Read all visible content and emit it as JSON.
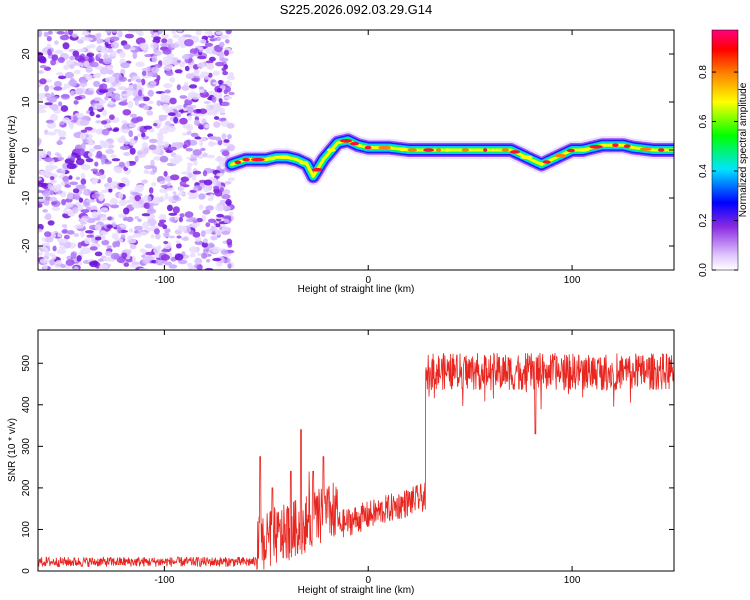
{
  "title": "S225.2026.092.03.29.G14",
  "chart_data": [
    {
      "type": "heatmap",
      "xlabel": "Height of straight line (km)",
      "ylabel": "Frequency (Hz)",
      "xlim": [
        -162,
        150
      ],
      "ylim": [
        -25,
        25
      ],
      "x_ticks": [
        -100,
        0,
        100
      ],
      "y_ticks": [
        -20,
        -10,
        0,
        10,
        20
      ],
      "colorbar": {
        "label": "Normalized spectral amplitude",
        "range": [
          0,
          0.97
        ],
        "ticks": [
          0.0,
          0.2,
          0.4,
          0.6,
          0.8
        ],
        "colors": [
          "#ffffff",
          "#8a2be2",
          "#0000ff",
          "#00e5ff",
          "#00ff00",
          "#ffff00",
          "#ff8000",
          "#ff0000",
          "#ff0080"
        ]
      },
      "noise_region_x": [
        -162,
        -67
      ],
      "ridge": {
        "x": [
          -67,
          -60,
          -50,
          -45,
          -40,
          -35,
          -30,
          -27,
          -22,
          -15,
          -10,
          -5,
          0,
          10,
          20,
          30,
          40,
          50,
          60,
          70,
          75,
          80,
          85,
          90,
          95,
          100,
          105,
          110,
          115,
          120,
          125,
          130,
          140,
          150
        ],
        "y": [
          -3,
          -2,
          -2,
          -1.5,
          -1.5,
          -2,
          -3,
          -5.5,
          -2,
          1.5,
          2,
          1,
          0.5,
          0.5,
          0,
          0,
          0,
          0,
          0,
          0,
          -1,
          -2,
          -3,
          -2,
          -1,
          0,
          0,
          0.5,
          1,
          1,
          1,
          0.5,
          0,
          0
        ]
      }
    },
    {
      "type": "line",
      "xlabel": "Height of straight line (km)",
      "ylabel": "SNR (10 * v/v)",
      "xlim": [
        -162,
        150
      ],
      "ylim": [
        0,
        580
      ],
      "x_ticks": [
        -100,
        0,
        100
      ],
      "y_ticks": [
        0,
        100,
        200,
        300,
        400,
        500
      ],
      "series": [
        {
          "color": "#e8251f",
          "segments": [
            {
              "x": [
                -162,
                -55
              ],
              "baseline": 22,
              "noise": 12
            },
            {
              "x": [
                -55,
                -15
              ],
              "baseline": 120,
              "noise": 70
            },
            {
              "x": [
                -15,
                28
              ],
              "baseline": 140,
              "noise": 35
            },
            {
              "x": [
                28,
                150
              ],
              "baseline": 480,
              "noise": 45
            }
          ],
          "spikes": [
            {
              "x": -53,
              "y": 275
            },
            {
              "x": -47,
              "y": 200
            },
            {
              "x": -38,
              "y": 240
            },
            {
              "x": -33,
              "y": 340
            },
            {
              "x": -27,
              "y": 240
            },
            {
              "x": -22,
              "y": 275
            },
            {
              "x": 82,
              "y": 330
            }
          ]
        }
      ]
    }
  ]
}
